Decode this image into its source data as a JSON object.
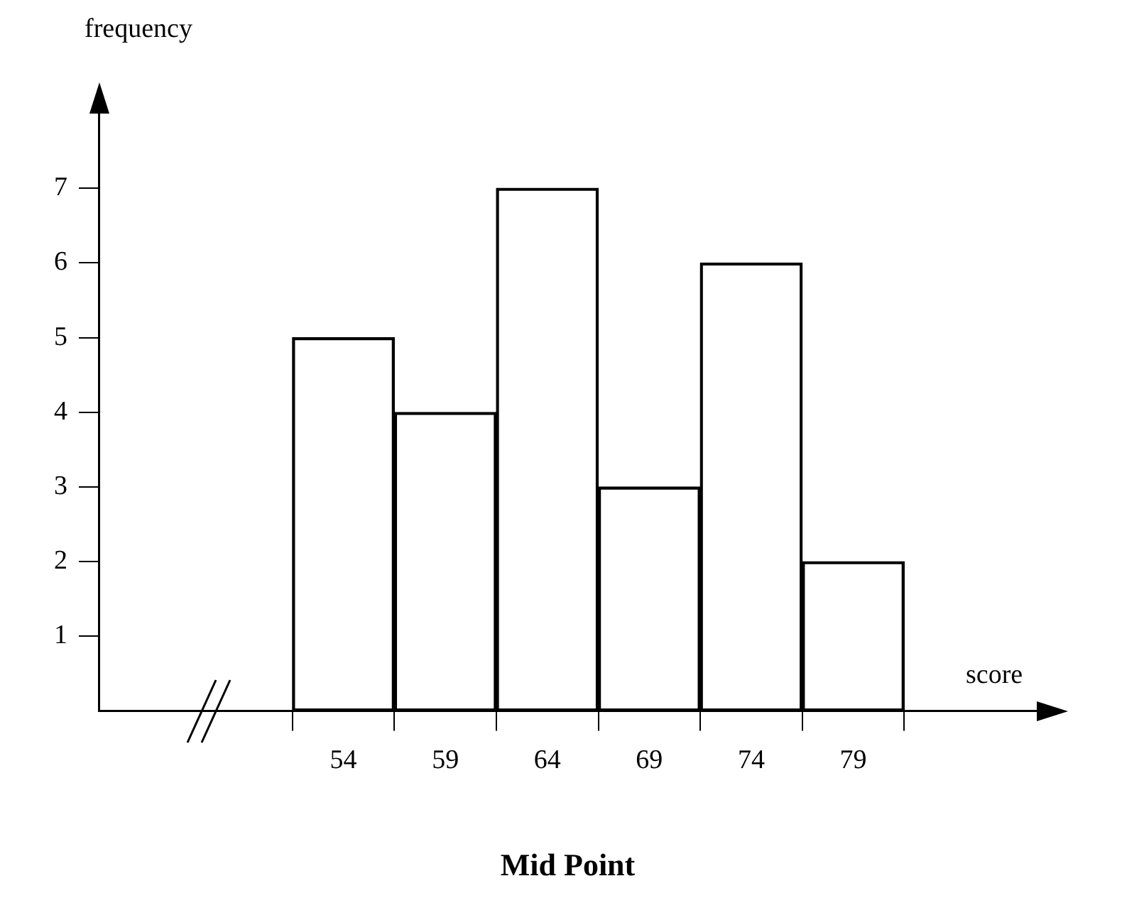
{
  "chart_data": {
    "type": "histogram",
    "bins": [
      51.5,
      56.5,
      61.5,
      66.5,
      71.5,
      76.5,
      81.5
    ],
    "values": [
      5,
      4,
      7,
      3,
      6,
      2
    ],
    "color": "#000000",
    "xlim": [
      42,
      88
    ],
    "xticks": [
      54,
      59,
      64,
      69,
      74,
      79
    ],
    "ylim": [
      0,
      8
    ],
    "yticks": [
      1,
      2,
      3,
      4,
      5,
      6,
      7
    ],
    "xlabel": "Mid Point",
    "ylabel": "frequency",
    "annotations": [
      "score"
    ],
    "grid": false,
    "legend": false
  }
}
